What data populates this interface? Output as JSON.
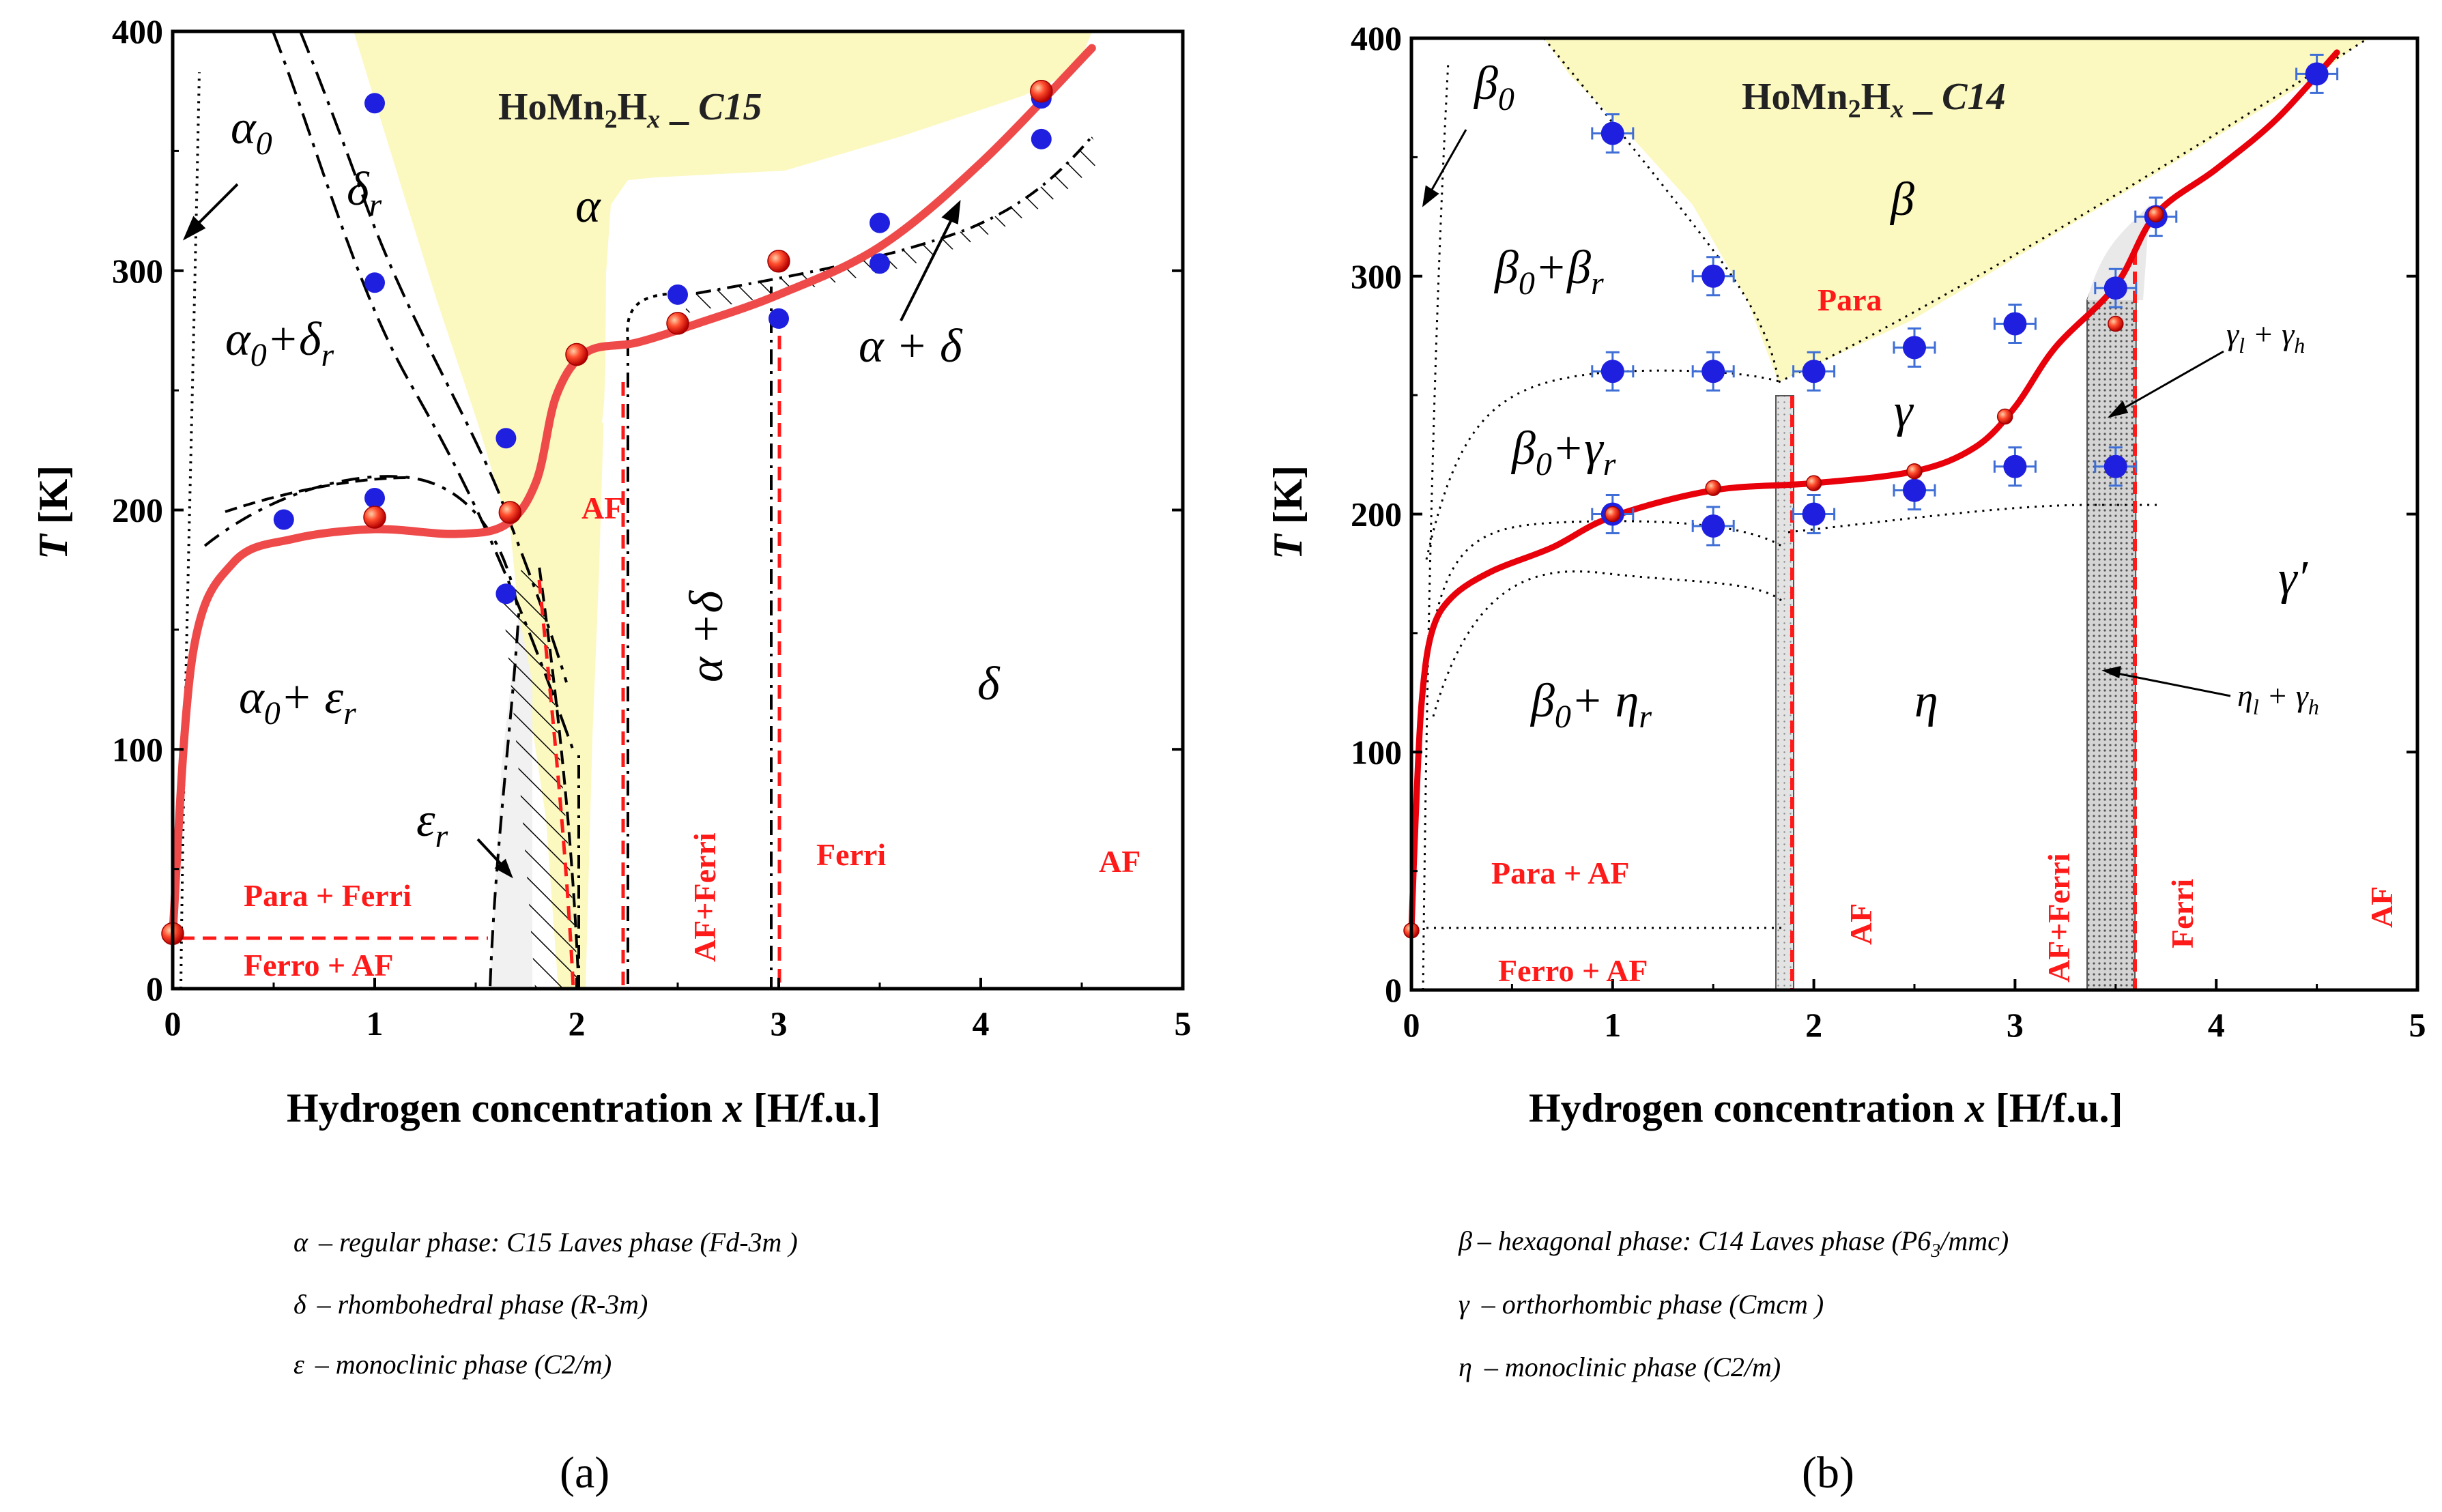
{
  "chart_data": [
    {
      "panel": "(a)",
      "type": "phase-diagram",
      "title_prefix": "HoMn",
      "title_sub": "2",
      "title_mid": "H",
      "title_x": "x",
      "title_sep": " _ ",
      "title_structure": "C15",
      "xlabel_text": "Hydrogen concentration ",
      "xlabel_var": "x",
      "xlabel_unit": " [H/f.u.]",
      "ylabel_var": "T",
      "ylabel_unit": " [K]",
      "xlim": [
        0,
        5
      ],
      "ylim": [
        0,
        400
      ],
      "xticks": [
        "0",
        "1",
        "2",
        "3",
        "4",
        "5"
      ],
      "yticks": [
        "0",
        "100",
        "200",
        "300",
        "400"
      ],
      "phases": {
        "alpha": "α",
        "alpha0": "α",
        "alpha0_sub": "0",
        "delta_r": "δ",
        "delta_r_sub": "r",
        "alpha0_delta_r": "α",
        "alpha0_delta_r_sub0": "0",
        "alpha0_delta_r_mid": "+δ",
        "alpha0_delta_r_sub": "r",
        "alpha0_eps_r": "α",
        "alpha0_eps_r_sub0": "0",
        "alpha0_eps_r_mid": "+ ε",
        "alpha0_eps_r_sub": "r",
        "eps_r": "ε",
        "eps_r_sub": "r",
        "alpha_plus_delta": "α + δ",
        "alpha_plus_delta_vert": "α +δ",
        "delta": "δ"
      },
      "magnetic_labels": {
        "af_top": "AF",
        "para_ferri": "Para + Ferri",
        "ferro_af": "Ferro + AF",
        "af_ferri": "AF+Ferri",
        "ferri": "Ferri",
        "af_right": "AF"
      },
      "blue_points": [
        {
          "x": 0.55,
          "y": 196
        },
        {
          "x": 1.0,
          "y": 205
        },
        {
          "x": 1.0,
          "y": 295
        },
        {
          "x": 1.0,
          "y": 370
        },
        {
          "x": 1.65,
          "y": 230
        },
        {
          "x": 1.65,
          "y": 165
        },
        {
          "x": 2.5,
          "y": 290
        },
        {
          "x": 3.0,
          "y": 280
        },
        {
          "x": 3.5,
          "y": 320
        },
        {
          "x": 3.5,
          "y": 303
        },
        {
          "x": 4.3,
          "y": 372
        },
        {
          "x": 4.3,
          "y": 355
        }
      ],
      "red_points": [
        {
          "x": 0.0,
          "y": 23
        },
        {
          "x": 1.0,
          "y": 197
        },
        {
          "x": 1.67,
          "y": 199
        },
        {
          "x": 2.0,
          "y": 265
        },
        {
          "x": 2.5,
          "y": 278
        },
        {
          "x": 3.0,
          "y": 304
        },
        {
          "x": 4.3,
          "y": 375
        }
      ],
      "ordering_curve": {
        "x": [
          0.0,
          0.1,
          0.3,
          0.6,
          1.0,
          1.4,
          1.65,
          1.8,
          1.9,
          2.05,
          2.3,
          2.6,
          3.0,
          3.5,
          4.0,
          4.55
        ],
        "y": [
          23,
          140,
          178,
          188,
          192,
          190,
          194,
          212,
          248,
          266,
          270,
          278,
          290,
          310,
          345,
          393
        ]
      },
      "legend": [
        {
          "sym": "α",
          "text": "–    regular phase: C15 Laves phase (Fd-3m )"
        },
        {
          "sym": "δ",
          "text": "–  rhombohedral phase (R-3m)"
        },
        {
          "sym": "ε",
          "text": "–  monoclinic phase (C2/m)"
        }
      ]
    },
    {
      "panel": "(b)",
      "type": "phase-diagram",
      "title_prefix": "HoMn",
      "title_sub": "2",
      "title_mid": "H",
      "title_x": "x",
      "title_sep": " _ ",
      "title_structure": "C14",
      "xlabel_text": "Hydrogen concentration ",
      "xlabel_var": "x",
      "xlabel_unit": " [H/f.u.]",
      "ylabel_var": "T",
      "ylabel_unit": " [K]",
      "xlim": [
        0,
        5
      ],
      "ylim": [
        0,
        400
      ],
      "xticks": [
        "0",
        "1",
        "2",
        "3",
        "4",
        "5"
      ],
      "yticks": [
        "0",
        "100",
        "200",
        "300",
        "400"
      ],
      "phases": {
        "beta0": "β",
        "beta0_sub": "0",
        "beta": "β",
        "beta0_beta_r": "β",
        "beta0_beta_r_sub0": "0",
        "beta0_beta_r_mid": "+β",
        "beta0_beta_r_sub": "r",
        "beta0_gamma_r": "β",
        "beta0_gamma_r_sub0": "0",
        "beta0_gamma_r_mid": "+γ",
        "beta0_gamma_r_sub": "r",
        "beta0_eta_r": "β",
        "beta0_eta_r_sub0": "0",
        "beta0_eta_r_mid": "+ η",
        "beta0_eta_r_sub": "r",
        "gamma": "γ",
        "gamma_prime": "γ′",
        "eta": "η",
        "gl_gh": "γ",
        "gl_gh_l": "l",
        "gl_gh_mid": " + γ",
        "gl_gh_h": "h",
        "el_gh": "η",
        "el_gh_l": "l",
        "el_gh_mid": " + γ",
        "el_gh_h": "h"
      },
      "magnetic_labels": {
        "para": "Para",
        "para_af": "Para + AF",
        "ferro_af": "Ferro + AF",
        "af_mid": "AF",
        "af_ferri": "AF+Ferri",
        "ferri": "Ferri",
        "af_right": "AF"
      },
      "blue_points": [
        {
          "x": 1.0,
          "y": 360
        },
        {
          "x": 1.5,
          "y": 300
        },
        {
          "x": 1.0,
          "y": 260
        },
        {
          "x": 1.5,
          "y": 260
        },
        {
          "x": 2.0,
          "y": 260
        },
        {
          "x": 2.5,
          "y": 270
        },
        {
          "x": 3.0,
          "y": 280
        },
        {
          "x": 3.5,
          "y": 295
        },
        {
          "x": 3.7,
          "y": 325
        },
        {
          "x": 4.5,
          "y": 385
        },
        {
          "x": 1.0,
          "y": 200
        },
        {
          "x": 1.5,
          "y": 195
        },
        {
          "x": 2.0,
          "y": 200
        },
        {
          "x": 2.5,
          "y": 210
        },
        {
          "x": 3.0,
          "y": 220
        },
        {
          "x": 3.5,
          "y": 220
        }
      ],
      "red_points": [
        {
          "x": 0.0,
          "y": 25
        },
        {
          "x": 1.0,
          "y": 200
        },
        {
          "x": 1.5,
          "y": 211
        },
        {
          "x": 2.0,
          "y": 213
        },
        {
          "x": 2.5,
          "y": 218
        },
        {
          "x": 2.95,
          "y": 241
        },
        {
          "x": 3.5,
          "y": 280
        },
        {
          "x": 3.7,
          "y": 326
        }
      ],
      "ordering_curve": {
        "x": [
          0.0,
          0.02,
          0.05,
          0.1,
          0.2,
          0.4,
          0.7,
          1.0,
          1.5,
          2.0,
          2.5,
          2.8,
          3.0,
          3.2,
          3.5,
          3.7,
          4.0,
          4.3,
          4.6
        ],
        "y": [
          25,
          70,
          120,
          150,
          165,
          176,
          186,
          199,
          210,
          213,
          218,
          228,
          245,
          270,
          296,
          326,
          345,
          366,
          394
        ]
      },
      "legend": [
        {
          "sym": "β",
          "text": "– hexagonal phase:  C14 Laves phase (P6",
          "sub": "3",
          "tail": "/mmc)"
        },
        {
          "sym": "γ",
          "text": " – orthorhombic phase (Cmcm )"
        },
        {
          "sym": "η",
          "text": "  – monoclinic phase (C2/m)"
        }
      ]
    }
  ],
  "colors": {
    "alpha_region": "#fbf8c0",
    "red_curve_a": "#ef4a4a",
    "red_curve_b": "#e8000b",
    "blue_point": "#1f1fe0",
    "red_point": "#e02020",
    "magnetic_text": "#ff1a1a",
    "errorbar": "#3f6fd6"
  }
}
